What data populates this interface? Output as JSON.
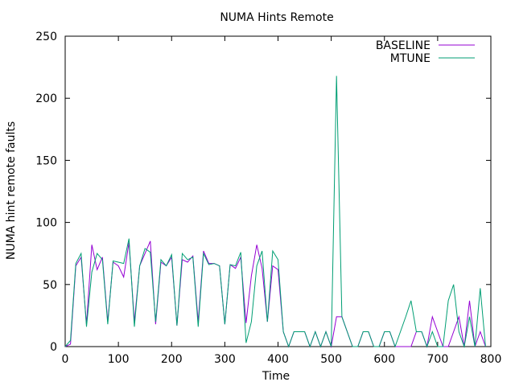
{
  "chart_data": {
    "type": "line",
    "title": "NUMA Hints Remote",
    "xlabel": "Time",
    "ylabel": "NUMA hint remote faults",
    "xlim": [
      0,
      800
    ],
    "ylim": [
      0,
      250
    ],
    "xticks": [
      0,
      100,
      200,
      300,
      400,
      500,
      600,
      700,
      800
    ],
    "yticks": [
      0,
      50,
      100,
      150,
      200,
      250
    ],
    "grid": false,
    "legend_position": "top-right",
    "series": [
      {
        "name": "BASELINE",
        "color": "#9400d3",
        "x": [
          0,
          10,
          20,
          30,
          40,
          50,
          60,
          70,
          80,
          90,
          100,
          110,
          120,
          130,
          140,
          150,
          160,
          170,
          180,
          190,
          200,
          210,
          220,
          230,
          240,
          250,
          260,
          270,
          280,
          290,
          300,
          310,
          320,
          330,
          340,
          350,
          360,
          370,
          380,
          390,
          400,
          410,
          420,
          430,
          440,
          450,
          460,
          470,
          480,
          490,
          500,
          510,
          520,
          530,
          540,
          550,
          560,
          570,
          580,
          590,
          600,
          610,
          620,
          630,
          640,
          650,
          660,
          670,
          680,
          690,
          700,
          710,
          720,
          730,
          740,
          750,
          760,
          770,
          780,
          790
        ],
        "y": [
          0,
          2,
          65,
          72,
          18,
          82,
          62,
          72,
          20,
          68,
          65,
          56,
          84,
          20,
          65,
          75,
          85,
          18,
          68,
          65,
          72,
          17,
          70,
          68,
          73,
          20,
          77,
          67,
          67,
          65,
          18,
          66,
          63,
          72,
          19,
          57,
          82,
          63,
          20,
          65,
          62,
          12,
          0,
          12,
          12,
          12,
          0,
          12,
          0,
          12,
          0,
          24,
          24,
          12,
          0,
          0,
          12,
          12,
          0,
          0,
          12,
          12,
          0,
          0,
          0,
          0,
          12,
          12,
          0,
          24,
          12,
          0,
          0,
          12,
          24,
          0,
          37,
          0,
          12,
          0
        ]
      },
      {
        "name": "MTUNE",
        "color": "#009e73",
        "x": [
          0,
          10,
          20,
          30,
          40,
          50,
          60,
          70,
          80,
          90,
          100,
          110,
          120,
          130,
          140,
          150,
          160,
          170,
          180,
          190,
          200,
          210,
          220,
          230,
          240,
          250,
          260,
          270,
          280,
          290,
          300,
          310,
          320,
          330,
          340,
          350,
          360,
          370,
          380,
          390,
          400,
          410,
          420,
          430,
          440,
          450,
          460,
          470,
          480,
          490,
          500,
          510,
          520,
          530,
          540,
          550,
          560,
          570,
          580,
          590,
          600,
          610,
          620,
          630,
          640,
          650,
          660,
          670,
          680,
          690,
          700,
          710,
          720,
          730,
          740,
          750,
          760,
          770,
          780,
          790
        ],
        "y": [
          0,
          5,
          67,
          75,
          16,
          60,
          75,
          70,
          18,
          69,
          68,
          67,
          87,
          16,
          65,
          79,
          76,
          20,
          70,
          65,
          74,
          17,
          75,
          70,
          72,
          16,
          75,
          66,
          67,
          65,
          18,
          66,
          65,
          76,
          3,
          20,
          65,
          77,
          20,
          77,
          70,
          12,
          0,
          12,
          12,
          12,
          0,
          12,
          0,
          12,
          0,
          218,
          24,
          12,
          0,
          0,
          12,
          12,
          0,
          0,
          12,
          12,
          0,
          12,
          24,
          37,
          12,
          12,
          0,
          12,
          0,
          0,
          37,
          50,
          12,
          0,
          24,
          0,
          47,
          0
        ]
      }
    ]
  }
}
